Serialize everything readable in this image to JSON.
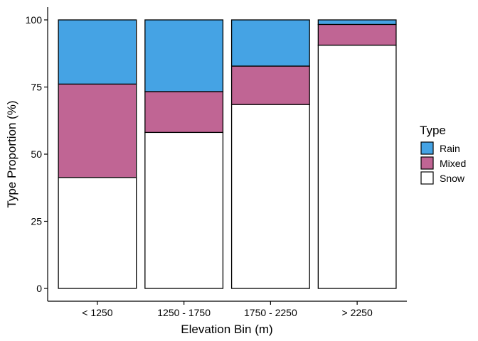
{
  "chart_data": {
    "type": "bar",
    "stacked": true,
    "xlabel": "Elevation Bin (m)",
    "ylabel": "Type Proportion (%)",
    "ylim": [
      0,
      100
    ],
    "yticks": [
      0,
      25,
      50,
      75,
      100
    ],
    "grid": false,
    "legend": {
      "title": "Type",
      "position": "right"
    },
    "categories": [
      "< 1250",
      "1250 - 1750",
      "1750 - 2250",
      "> 2250"
    ],
    "series": [
      {
        "name": "Snow",
        "values": [
          41.3,
          58.1,
          68.5,
          90.6
        ],
        "color": "#ffffff"
      },
      {
        "name": "Mixed",
        "values": [
          34.8,
          15.2,
          14.3,
          7.7
        ],
        "color": "#c06594"
      },
      {
        "name": "Rain",
        "values": [
          23.9,
          26.7,
          17.2,
          1.7
        ],
        "color": "#45a3e4"
      }
    ],
    "legend_order": [
      "Rain",
      "Mixed",
      "Snow"
    ]
  }
}
